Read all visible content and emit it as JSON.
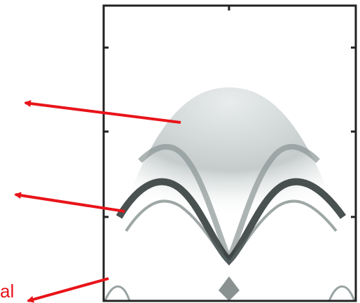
{
  "annotation": {
    "text": "al"
  }
}
